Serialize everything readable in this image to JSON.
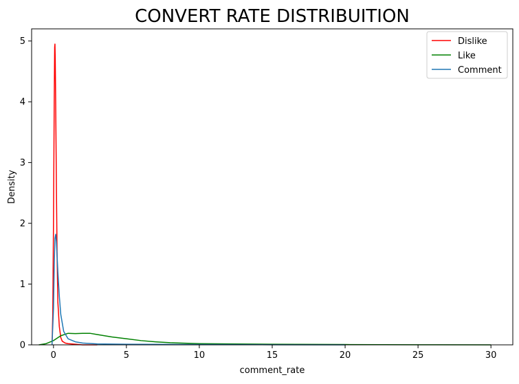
{
  "chart_data": {
    "type": "line",
    "title": "CONVERT RATE DISTRIBUITION",
    "xlabel": "comment_rate",
    "ylabel": "Density",
    "xlim": [
      -1.5,
      31.5
    ],
    "ylim": [
      0,
      5.2
    ],
    "xticks": [
      0,
      5,
      10,
      15,
      20,
      25,
      30
    ],
    "yticks": [
      0,
      1,
      2,
      3,
      4,
      5
    ],
    "grid": false,
    "legend_position": "top-right",
    "series": [
      {
        "name": "Dislike",
        "color": "#ff0000",
        "x": [
          -0.1,
          -0.05,
          0.0,
          0.05,
          0.08,
          0.1,
          0.12,
          0.15,
          0.2,
          0.25,
          0.3,
          0.4,
          0.5,
          0.6,
          0.8,
          1.0,
          1.5,
          2.0,
          3.0
        ],
        "y": [
          0.0,
          0.5,
          2.0,
          4.0,
          4.9,
          4.95,
          4.7,
          4.0,
          2.6,
          1.4,
          0.7,
          0.3,
          0.12,
          0.06,
          0.03,
          0.02,
          0.01,
          0.0,
          0.0
        ]
      },
      {
        "name": "Like",
        "color": "#008000",
        "x": [
          -1.0,
          -0.5,
          0.0,
          0.5,
          1.0,
          1.5,
          2.0,
          2.5,
          3.0,
          4.0,
          5.0,
          6.0,
          7.0,
          8.0,
          10.0,
          12.0,
          15.0,
          20.0,
          25.0,
          30.0
        ],
        "y": [
          0.0,
          0.02,
          0.07,
          0.15,
          0.19,
          0.185,
          0.19,
          0.19,
          0.17,
          0.13,
          0.1,
          0.07,
          0.05,
          0.035,
          0.02,
          0.015,
          0.01,
          0.005,
          0.002,
          0.0
        ]
      },
      {
        "name": "Comment",
        "color": "#1f77b4",
        "x": [
          -0.1,
          0.0,
          0.05,
          0.1,
          0.15,
          0.2,
          0.25,
          0.3,
          0.4,
          0.5,
          0.7,
          1.0,
          1.5,
          2.0,
          3.0,
          5.0,
          10.0,
          15.0,
          20.0
        ],
        "y": [
          0.0,
          0.6,
          1.3,
          1.75,
          1.82,
          1.7,
          1.45,
          1.2,
          0.8,
          0.5,
          0.22,
          0.1,
          0.05,
          0.03,
          0.015,
          0.01,
          0.005,
          0.002,
          0.0
        ]
      }
    ]
  }
}
